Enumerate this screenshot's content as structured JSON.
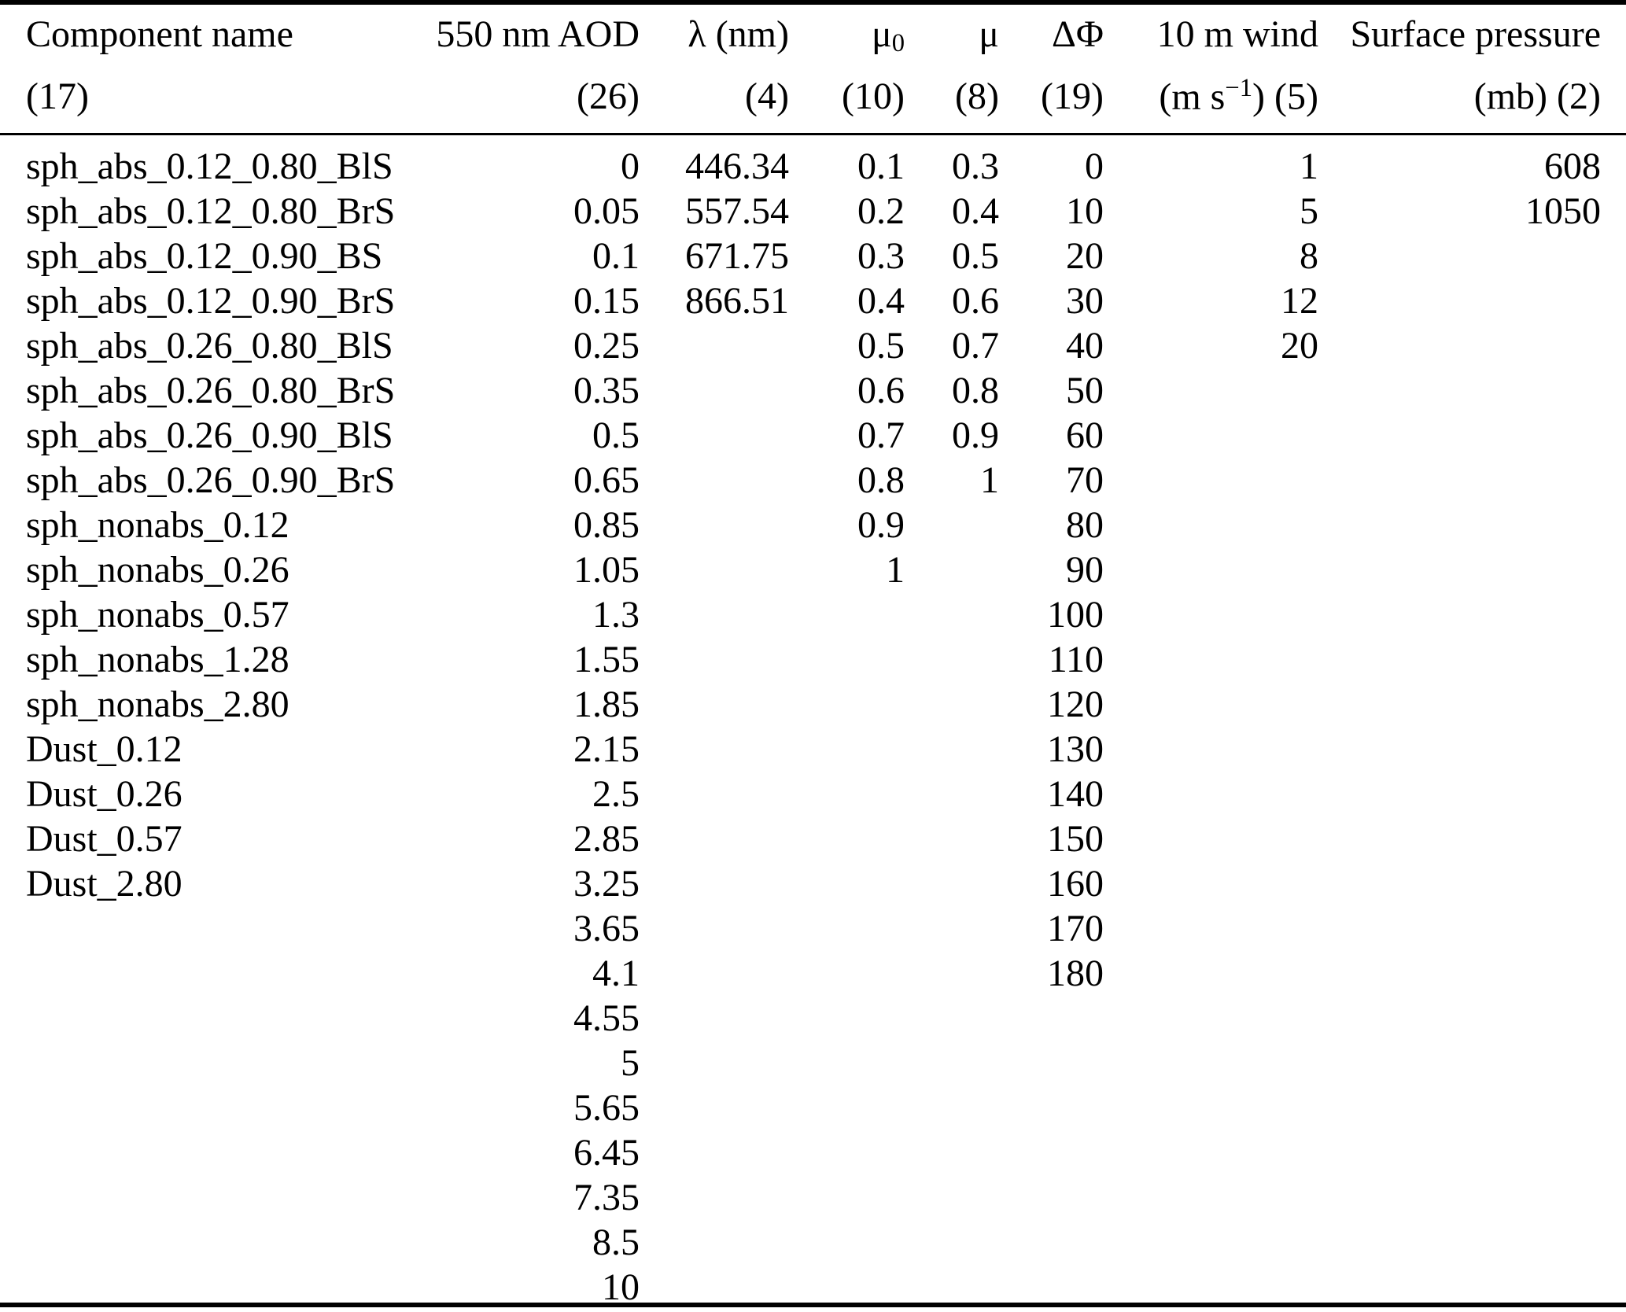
{
  "table": {
    "columns": [
      {
        "id": "component_name",
        "line1": "Component name",
        "line2": "(17)",
        "count": 17
      },
      {
        "id": "aod_550nm",
        "line1": "550 nm AOD",
        "line2": "(26)",
        "count": 26
      },
      {
        "id": "lambda_nm",
        "line1": "λ (nm)",
        "line2": "(4)",
        "count": 4
      },
      {
        "id": "mu0",
        "line1_base": "μ",
        "line1_sub": "0",
        "line2": "(10)",
        "count": 10
      },
      {
        "id": "mu",
        "line1": "μ",
        "line2": "(8)",
        "count": 8
      },
      {
        "id": "delta_phi",
        "line1": "ΔΦ",
        "line2": "(19)",
        "count": 19
      },
      {
        "id": "wind_10m",
        "line1": "10 m wind",
        "line2_pre": "(m s",
        "line2_sup": "−1",
        "line2_post": ") (5)",
        "count": 5
      },
      {
        "id": "surface_pressure",
        "line1": "Surface pressure",
        "line2": "(mb) (2)",
        "count": 2
      }
    ],
    "component_names": [
      "sph_abs_0.12_0.80_BlS",
      "sph_abs_0.12_0.80_BrS",
      "sph_abs_0.12_0.90_BS",
      "sph_abs_0.12_0.90_BrS",
      "sph_abs_0.26_0.80_BlS",
      "sph_abs_0.26_0.80_BrS",
      "sph_abs_0.26_0.90_BlS",
      "sph_abs_0.26_0.90_BrS",
      "sph_nonabs_0.12",
      "sph_nonabs_0.26",
      "sph_nonabs_0.57",
      "sph_nonabs_1.28",
      "sph_nonabs_2.80",
      "Dust_0.12",
      "Dust_0.26",
      "Dust_0.57",
      "Dust_2.80"
    ],
    "aod_550nm": [
      "0",
      "0.05",
      "0.1",
      "0.15",
      "0.25",
      "0.35",
      "0.5",
      "0.65",
      "0.85",
      "1.05",
      "1.3",
      "1.55",
      "1.85",
      "2.15",
      "2.5",
      "2.85",
      "3.25",
      "3.65",
      "4.1",
      "4.55",
      "5",
      "5.65",
      "6.45",
      "7.35",
      "8.5",
      "10"
    ],
    "lambda_nm": [
      "446.34",
      "557.54",
      "671.75",
      "866.51"
    ],
    "mu0": [
      "0.1",
      "0.2",
      "0.3",
      "0.4",
      "0.5",
      "0.6",
      "0.7",
      "0.8",
      "0.9",
      "1"
    ],
    "mu": [
      "0.3",
      "0.4",
      "0.5",
      "0.6",
      "0.7",
      "0.8",
      "0.9",
      "1"
    ],
    "delta_phi": [
      "0",
      "10",
      "20",
      "30",
      "40",
      "50",
      "60",
      "70",
      "80",
      "90",
      "100",
      "110",
      "120",
      "130",
      "140",
      "150",
      "160",
      "170",
      "180"
    ],
    "wind_10m": [
      "1",
      "5",
      "8",
      "12",
      "20"
    ],
    "surface_pressure": [
      "608",
      "1050"
    ]
  },
  "colors": {
    "background": "#ffffff",
    "text": "#000000",
    "rule": "#000000"
  }
}
